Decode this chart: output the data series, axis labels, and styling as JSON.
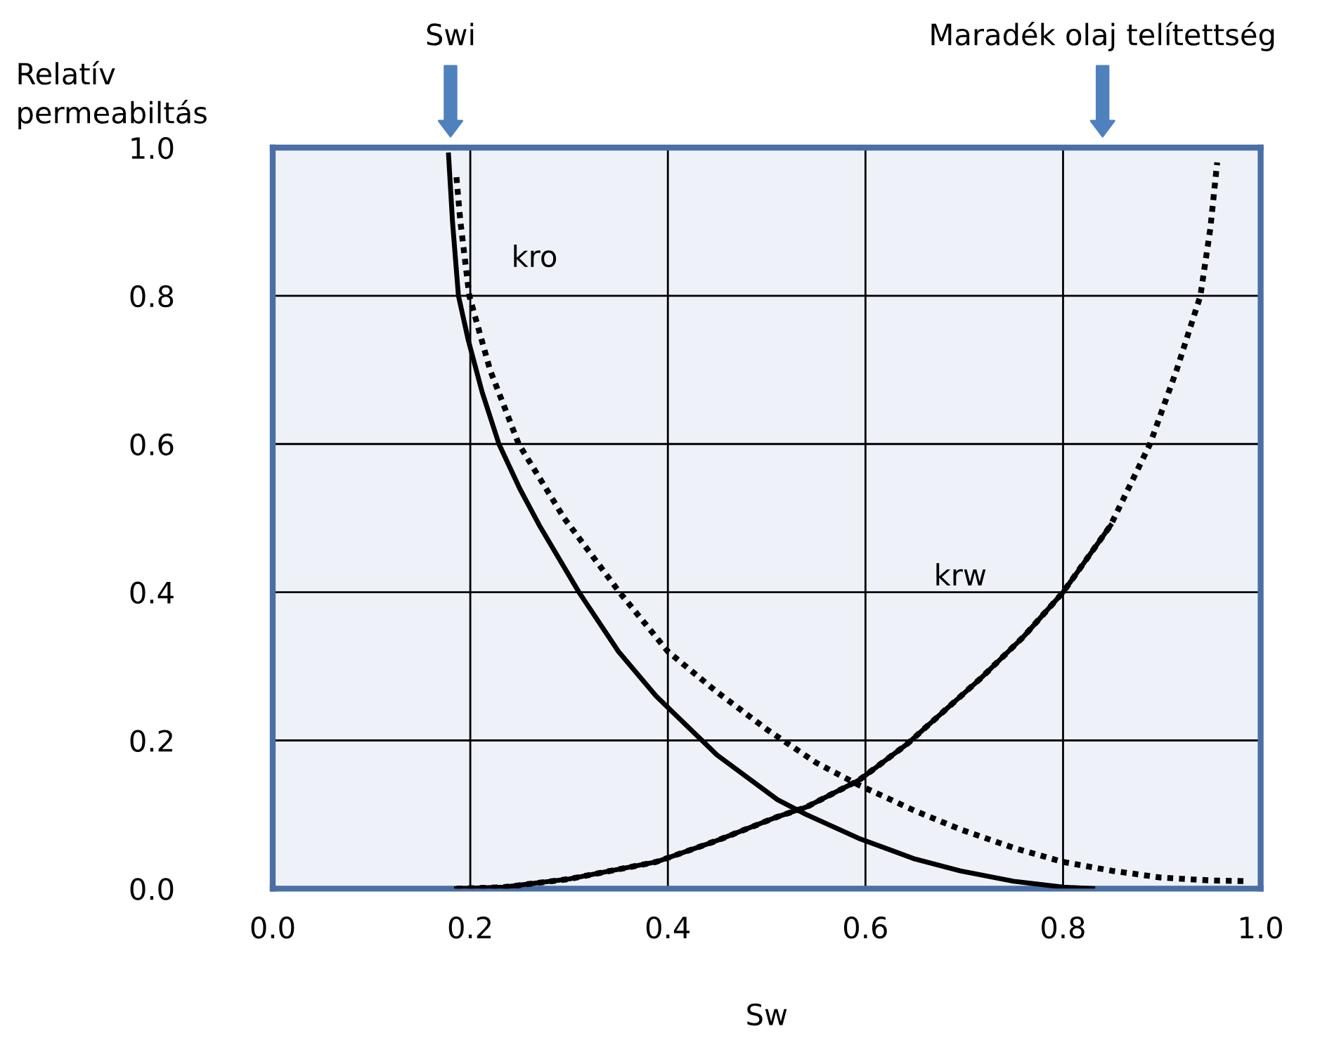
{
  "chart_data": {
    "type": "line",
    "xlabel": "Sw",
    "ylabel": "Relatív\npermeabiltás",
    "xlim": [
      0,
      1
    ],
    "ylim": [
      0,
      1
    ],
    "xticks": [
      {
        "value": 0,
        "label": "0.0"
      },
      {
        "value": 0.2,
        "label": "0.2"
      },
      {
        "value": 0.4,
        "label": "0.4"
      },
      {
        "value": 0.6,
        "label": "0.6"
      },
      {
        "value": 0.8,
        "label": "0.8"
      },
      {
        "value": 1,
        "label": "1.0"
      }
    ],
    "yticks": [
      {
        "value": 0,
        "label": "0.0"
      },
      {
        "value": 0.2,
        "label": "0.2"
      },
      {
        "value": 0.4,
        "label": "0.4"
      },
      {
        "value": 0.6,
        "label": "0.6"
      },
      {
        "value": 0.8,
        "label": "0.8"
      },
      {
        "value": 1,
        "label": "1.0"
      }
    ],
    "grid": true,
    "marker": "none",
    "series": [
      {
        "color": "#000000",
        "line_style": "solid",
        "x": [
          0.178,
          0.182,
          0.188,
          0.198,
          0.212,
          0.229,
          0.25,
          0.27,
          0.31,
          0.35,
          0.388,
          0.45,
          0.511,
          0.54,
          0.593,
          0.65,
          0.696,
          0.75,
          0.8,
          0.83
        ],
        "values": [
          0.99,
          0.9,
          0.8,
          0.74,
          0.67,
          0.6,
          0.54,
          0.49,
          0.4,
          0.32,
          0.26,
          0.18,
          0.12,
          0.1,
          0.068,
          0.04,
          0.024,
          0.01,
          0.002,
          0.0
        ]
      },
      {
        "color": "#000000",
        "line_style": "dotted",
        "x": [
          0.186,
          0.19,
          0.199,
          0.22,
          0.249,
          0.295,
          0.351,
          0.4,
          0.45,
          0.5,
          0.55,
          0.593,
          0.65,
          0.696,
          0.75,
          0.8,
          0.85,
          0.899,
          0.95,
          0.987
        ],
        "values": [
          0.96,
          0.9,
          0.8,
          0.7,
          0.6,
          0.5,
          0.4,
          0.32,
          0.265,
          0.215,
          0.17,
          0.14,
          0.105,
          0.08,
          0.055,
          0.036,
          0.024,
          0.015,
          0.011,
          0.01
        ]
      },
      {
        "color": "#000000",
        "line_style": "solid",
        "x": [
          0.186,
          0.234,
          0.3,
          0.388,
          0.45,
          0.511,
          0.54,
          0.593,
          0.642,
          0.716,
          0.76,
          0.8,
          0.848
        ],
        "values": [
          0.0,
          0.002,
          0.013,
          0.036,
          0.065,
          0.097,
          0.11,
          0.146,
          0.195,
          0.283,
          0.34,
          0.4,
          0.49
        ]
      },
      {
        "color": "#000000",
        "line_style": "dotted",
        "x": [
          0.186,
          0.234,
          0.3,
          0.388,
          0.45,
          0.511,
          0.54,
          0.593,
          0.642,
          0.716,
          0.76,
          0.8,
          0.848,
          0.888,
          0.915,
          0.939,
          0.949,
          0.956
        ],
        "values": [
          0.0,
          0.002,
          0.013,
          0.036,
          0.065,
          0.097,
          0.11,
          0.146,
          0.195,
          0.283,
          0.34,
          0.4,
          0.49,
          0.6,
          0.7,
          0.8,
          0.89,
          0.98
        ]
      }
    ],
    "annotations": [
      "kro",
      "krw",
      "Swi",
      "Maradék olaj telítettség"
    ]
  }
}
